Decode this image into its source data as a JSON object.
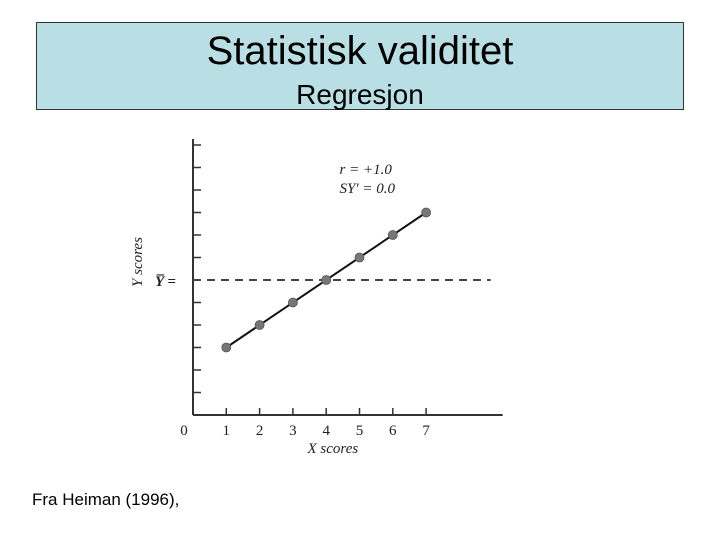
{
  "slide": {
    "title": "Statistisk validitet",
    "subtitle": "Regresjon",
    "source": "Fra Heiman (1996),"
  },
  "chart_data": {
    "type": "line",
    "title": "",
    "xlabel": "X scores",
    "ylabel": "Y scores",
    "x_ticks": [
      "0",
      "1",
      "2",
      "3",
      "4",
      "5",
      "6",
      "7"
    ],
    "xlim": [
      0,
      9
    ],
    "ylim": [
      0,
      12
    ],
    "series": [
      {
        "x": [
          1,
          2,
          3,
          4,
          5,
          6,
          7
        ],
        "y": [
          3,
          4,
          5,
          6,
          7,
          8,
          9
        ]
      }
    ],
    "mean_line": {
      "label": "Y̅ =",
      "value": 6,
      "style": "dashed"
    },
    "annotations": [
      "r = +1.0",
      "SY′ = 0.0"
    ],
    "colors": {
      "line": "#111111",
      "points": "#777777",
      "axis": "#333333"
    }
  }
}
